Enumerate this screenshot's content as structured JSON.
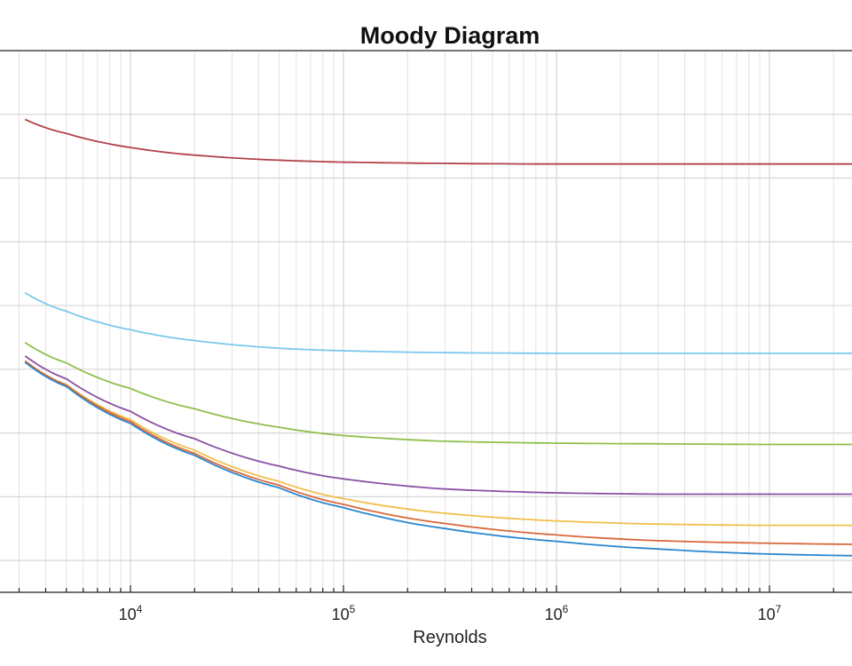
{
  "chart_data": {
    "type": "line",
    "title": "Moody Diagram",
    "xlabel": "Reynolds",
    "ylabel": "",
    "x_scale": "log",
    "xlim": [
      2000,
      30000000
    ],
    "ylim": [
      0.005,
      0.09
    ],
    "grid": true,
    "x_tick_labels": [
      {
        "base": "10",
        "exp": "4",
        "value": 10000
      },
      {
        "base": "10",
        "exp": "5",
        "value": 100000
      },
      {
        "base": "10",
        "exp": "6",
        "value": 1000000
      },
      {
        "base": "10",
        "exp": "7",
        "value": 10000000
      }
    ],
    "y_gridlines": [
      0.01,
      0.02,
      0.03,
      0.04,
      0.05,
      0.06,
      0.07,
      0.08
    ],
    "series": [
      {
        "color": "#b2424a",
        "x": [
          3200,
          5000,
          10000,
          20000,
          50000,
          100000,
          300000,
          1000000,
          3000000,
          10000000,
          30000000
        ],
        "y": [
          0.0792,
          0.077,
          0.0748,
          0.0736,
          0.0728,
          0.0725,
          0.0723,
          0.0722,
          0.0722,
          0.0722,
          0.0722
        ]
      },
      {
        "color": "#7cc8ee",
        "x": [
          3200,
          5000,
          10000,
          20000,
          50000,
          100000,
          300000,
          1000000,
          3000000,
          10000000,
          30000000
        ],
        "y": [
          0.052,
          0.0491,
          0.0462,
          0.0445,
          0.0433,
          0.0429,
          0.0426,
          0.0425,
          0.0425,
          0.0425,
          0.0425
        ]
      },
      {
        "color": "#8fbf4d",
        "x": [
          3200,
          5000,
          10000,
          20000,
          50000,
          100000,
          300000,
          1000000,
          3000000,
          10000000,
          30000000
        ],
        "y": [
          0.0442,
          0.041,
          0.037,
          0.0338,
          0.0309,
          0.0296,
          0.0287,
          0.0284,
          0.0283,
          0.0282,
          0.0282
        ]
      },
      {
        "color": "#8b4fa5",
        "x": [
          3200,
          5000,
          10000,
          20000,
          50000,
          100000,
          300000,
          1000000,
          3000000,
          10000000,
          30000000
        ],
        "y": [
          0.0421,
          0.0385,
          0.0334,
          0.0291,
          0.0248,
          0.0228,
          0.0212,
          0.0206,
          0.0204,
          0.0204,
          0.0204
        ]
      },
      {
        "color": "#f2bf4b",
        "x": [
          3200,
          5000,
          10000,
          20000,
          50000,
          100000,
          300000,
          1000000,
          3000000,
          10000000,
          30000000
        ],
        "y": [
          0.0413,
          0.0376,
          0.0321,
          0.0273,
          0.0224,
          0.0197,
          0.0174,
          0.0162,
          0.0157,
          0.0155,
          0.0155
        ]
      },
      {
        "color": "#d9693c",
        "x": [
          3200,
          5000,
          10000,
          20000,
          50000,
          100000,
          300000,
          1000000,
          3000000,
          10000000,
          30000000
        ],
        "y": [
          0.0413,
          0.0375,
          0.0318,
          0.0268,
          0.0218,
          0.0188,
          0.0158,
          0.014,
          0.0131,
          0.0127,
          0.0125
        ]
      },
      {
        "color": "#2a86cf",
        "x": [
          3200,
          5000,
          10000,
          20000,
          50000,
          100000,
          300000,
          1000000,
          3000000,
          10000000,
          30000000
        ],
        "y": [
          0.0411,
          0.0373,
          0.0315,
          0.0265,
          0.0214,
          0.0183,
          0.015,
          0.013,
          0.0118,
          0.011,
          0.0107
        ]
      }
    ]
  }
}
